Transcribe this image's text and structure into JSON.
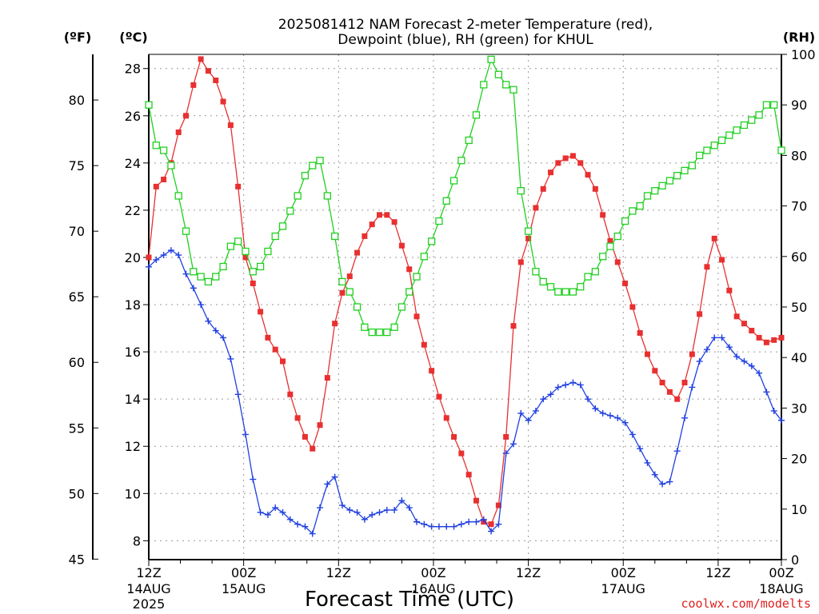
{
  "chart_data": {
    "type": "line",
    "title_line1": "2025081412 NAM Forecast 2-meter Temperature (red),",
    "title_line2": "Dewpoint (blue), RH (green) for KHUL",
    "xlabel": "Forecast Time (UTC)",
    "credit": "coolwx.com/modelts",
    "units": {
      "fahrenheit": "(ºF)",
      "celsius": "(ºC)",
      "rh": "(RH)"
    },
    "x_range_hours": [
      0,
      60
    ],
    "celsius_ylim": [
      7.2,
      28.6
    ],
    "rh_ylim": [
      0,
      100
    ],
    "grid": true,
    "x_ticks": [
      {
        "hour": 0,
        "label": "12Z",
        "sub1": "14AUG",
        "sub2": "2025"
      },
      {
        "hour": 9,
        "label": "00Z",
        "sub1": "15AUG",
        "sub2": ""
      },
      {
        "hour": 18,
        "label": "12Z",
        "sub1": "",
        "sub2": ""
      },
      {
        "hour": 27,
        "label": "00Z",
        "sub1": "16AUG",
        "sub2": ""
      },
      {
        "hour": 36,
        "label": "12Z",
        "sub1": "",
        "sub2": ""
      },
      {
        "hour": 45,
        "label": "00Z",
        "sub1": "17AUG",
        "sub2": ""
      },
      {
        "hour": 54,
        "label": "12Z",
        "sub1": "",
        "sub2": ""
      },
      {
        "hour": 60,
        "label": "00Z",
        "sub1": "18AUG",
        "sub2": ""
      }
    ],
    "celsius_ticks": [
      8,
      10,
      12,
      14,
      16,
      18,
      20,
      22,
      24,
      26,
      28
    ],
    "fahrenheit_ticks": [
      45,
      50,
      55,
      60,
      65,
      70,
      75,
      80
    ],
    "rh_ticks": [
      0,
      10,
      20,
      30,
      40,
      50,
      60,
      70,
      80,
      90,
      100
    ],
    "series": [
      {
        "key": "temperature",
        "axis": "celsius",
        "color": "#e83030",
        "marker": "filled-square",
        "values": [
          20.0,
          23.0,
          23.3,
          24.0,
          25.3,
          26.0,
          27.3,
          28.4,
          27.9,
          27.5,
          26.6,
          25.6,
          23.0,
          20.0,
          18.9,
          17.7,
          16.6,
          16.1,
          15.6,
          14.2,
          13.2,
          12.4,
          11.9,
          12.9,
          14.9,
          17.2,
          18.5,
          19.2,
          20.2,
          20.9,
          21.4,
          21.8,
          21.8,
          21.5,
          20.5,
          19.5,
          17.5,
          16.3,
          15.2,
          14.1,
          13.2,
          12.4,
          11.7,
          10.8,
          9.7,
          8.8,
          8.7,
          9.5,
          12.4,
          17.1,
          19.8,
          20.8,
          22.1,
          22.9,
          23.6,
          24.0,
          24.2,
          24.3,
          24.0,
          23.5,
          22.9,
          21.8,
          20.7,
          19.8,
          18.9,
          17.9,
          16.8,
          15.9,
          15.2,
          14.7,
          14.3,
          14.0,
          14.7,
          15.9,
          17.6,
          19.6,
          20.8,
          19.9,
          18.6,
          17.5,
          17.2,
          16.9,
          16.6,
          16.4,
          16.5,
          16.6
        ]
      },
      {
        "key": "dewpoint",
        "axis": "celsius",
        "color": "#2040e0",
        "marker": "plus",
        "values": [
          19.6,
          19.9,
          20.1,
          20.3,
          20.1,
          19.3,
          18.7,
          18.0,
          17.3,
          16.9,
          16.6,
          15.7,
          14.2,
          12.5,
          10.6,
          9.2,
          9.1,
          9.4,
          9.2,
          8.9,
          8.7,
          8.6,
          8.3,
          9.4,
          10.4,
          10.7,
          9.5,
          9.3,
          9.2,
          8.9,
          9.1,
          9.2,
          9.3,
          9.3,
          9.7,
          9.4,
          8.8,
          8.7,
          8.6,
          8.6,
          8.6,
          8.6,
          8.7,
          8.8,
          8.8,
          8.9,
          8.4,
          8.7,
          11.7,
          12.1,
          13.4,
          13.1,
          13.5,
          14.0,
          14.2,
          14.5,
          14.6,
          14.7,
          14.6,
          14.0,
          13.6,
          13.4,
          13.3,
          13.2,
          13.0,
          12.5,
          11.9,
          11.3,
          10.8,
          10.4,
          10.5,
          11.8,
          13.2,
          14.5,
          15.6,
          16.1,
          16.6,
          16.6,
          16.2,
          15.8,
          15.6,
          15.4,
          15.1,
          14.3,
          13.5,
          13.1
        ]
      },
      {
        "key": "rh",
        "axis": "rh",
        "color": "#20d020",
        "marker": "open-square",
        "values": [
          90,
          82,
          81,
          78,
          72,
          65,
          57,
          56,
          55,
          56,
          58,
          62,
          63,
          61,
          57,
          58,
          61,
          64,
          66,
          69,
          72,
          76,
          78,
          79,
          72,
          64,
          55,
          53,
          50,
          46,
          45,
          45,
          45,
          46,
          50,
          53,
          56,
          60,
          63,
          67,
          71,
          75,
          79,
          83,
          88,
          94,
          99,
          96,
          94,
          93,
          73,
          65,
          57,
          55,
          54,
          53,
          53,
          53,
          54,
          56,
          57,
          60,
          62,
          64,
          67,
          69,
          70,
          72,
          73,
          74,
          75,
          76,
          77,
          78,
          80,
          81,
          82,
          83,
          84,
          85,
          86,
          87,
          88,
          90,
          90,
          81
        ]
      }
    ]
  }
}
